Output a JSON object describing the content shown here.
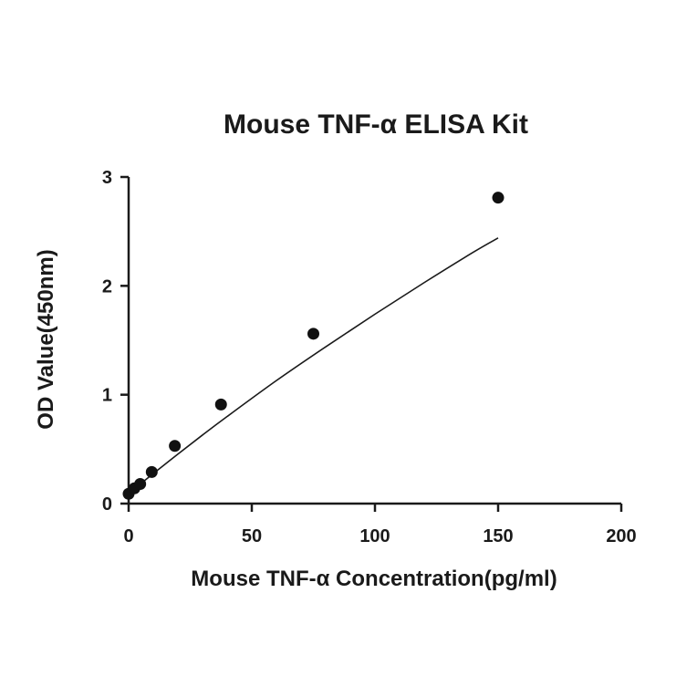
{
  "chart_data": {
    "type": "scatter",
    "title": "Mouse TNF-α ELISA Kit",
    "xlabel": "Mouse TNF-α Concentration(pg/ml)",
    "ylabel": "OD Value(450nm)",
    "xlim": [
      0,
      200
    ],
    "ylim": [
      0,
      3
    ],
    "xticks": [
      0,
      50,
      100,
      150,
      200
    ],
    "yticks": [
      0,
      1,
      2,
      3
    ],
    "xtick_labels": [
      "0",
      "50",
      "100",
      "150",
      "200"
    ],
    "ytick_labels": [
      "0",
      "1",
      "2",
      "3"
    ],
    "grid": false,
    "points": [
      {
        "x": 0,
        "y": 0.09
      },
      {
        "x": 2.34,
        "y": 0.14
      },
      {
        "x": 4.69,
        "y": 0.18
      },
      {
        "x": 9.38,
        "y": 0.29
      },
      {
        "x": 18.75,
        "y": 0.53
      },
      {
        "x": 37.5,
        "y": 0.91
      },
      {
        "x": 75,
        "y": 1.56
      },
      {
        "x": 150,
        "y": 2.81
      }
    ],
    "fit": {
      "type": "curve",
      "samples": [
        [
          0,
          0.095
        ],
        [
          5,
          0.185
        ],
        [
          10,
          0.275
        ],
        [
          20,
          0.455
        ],
        [
          30,
          0.63
        ],
        [
          40,
          0.8
        ],
        [
          60,
          1.13
        ],
        [
          80,
          1.44
        ],
        [
          100,
          1.74
        ],
        [
          120,
          2.03
        ],
        [
          140,
          2.31
        ],
        [
          150,
          2.44
        ]
      ]
    },
    "colors": {
      "ink": "#1a1a1a",
      "marker": "#111111"
    }
  }
}
